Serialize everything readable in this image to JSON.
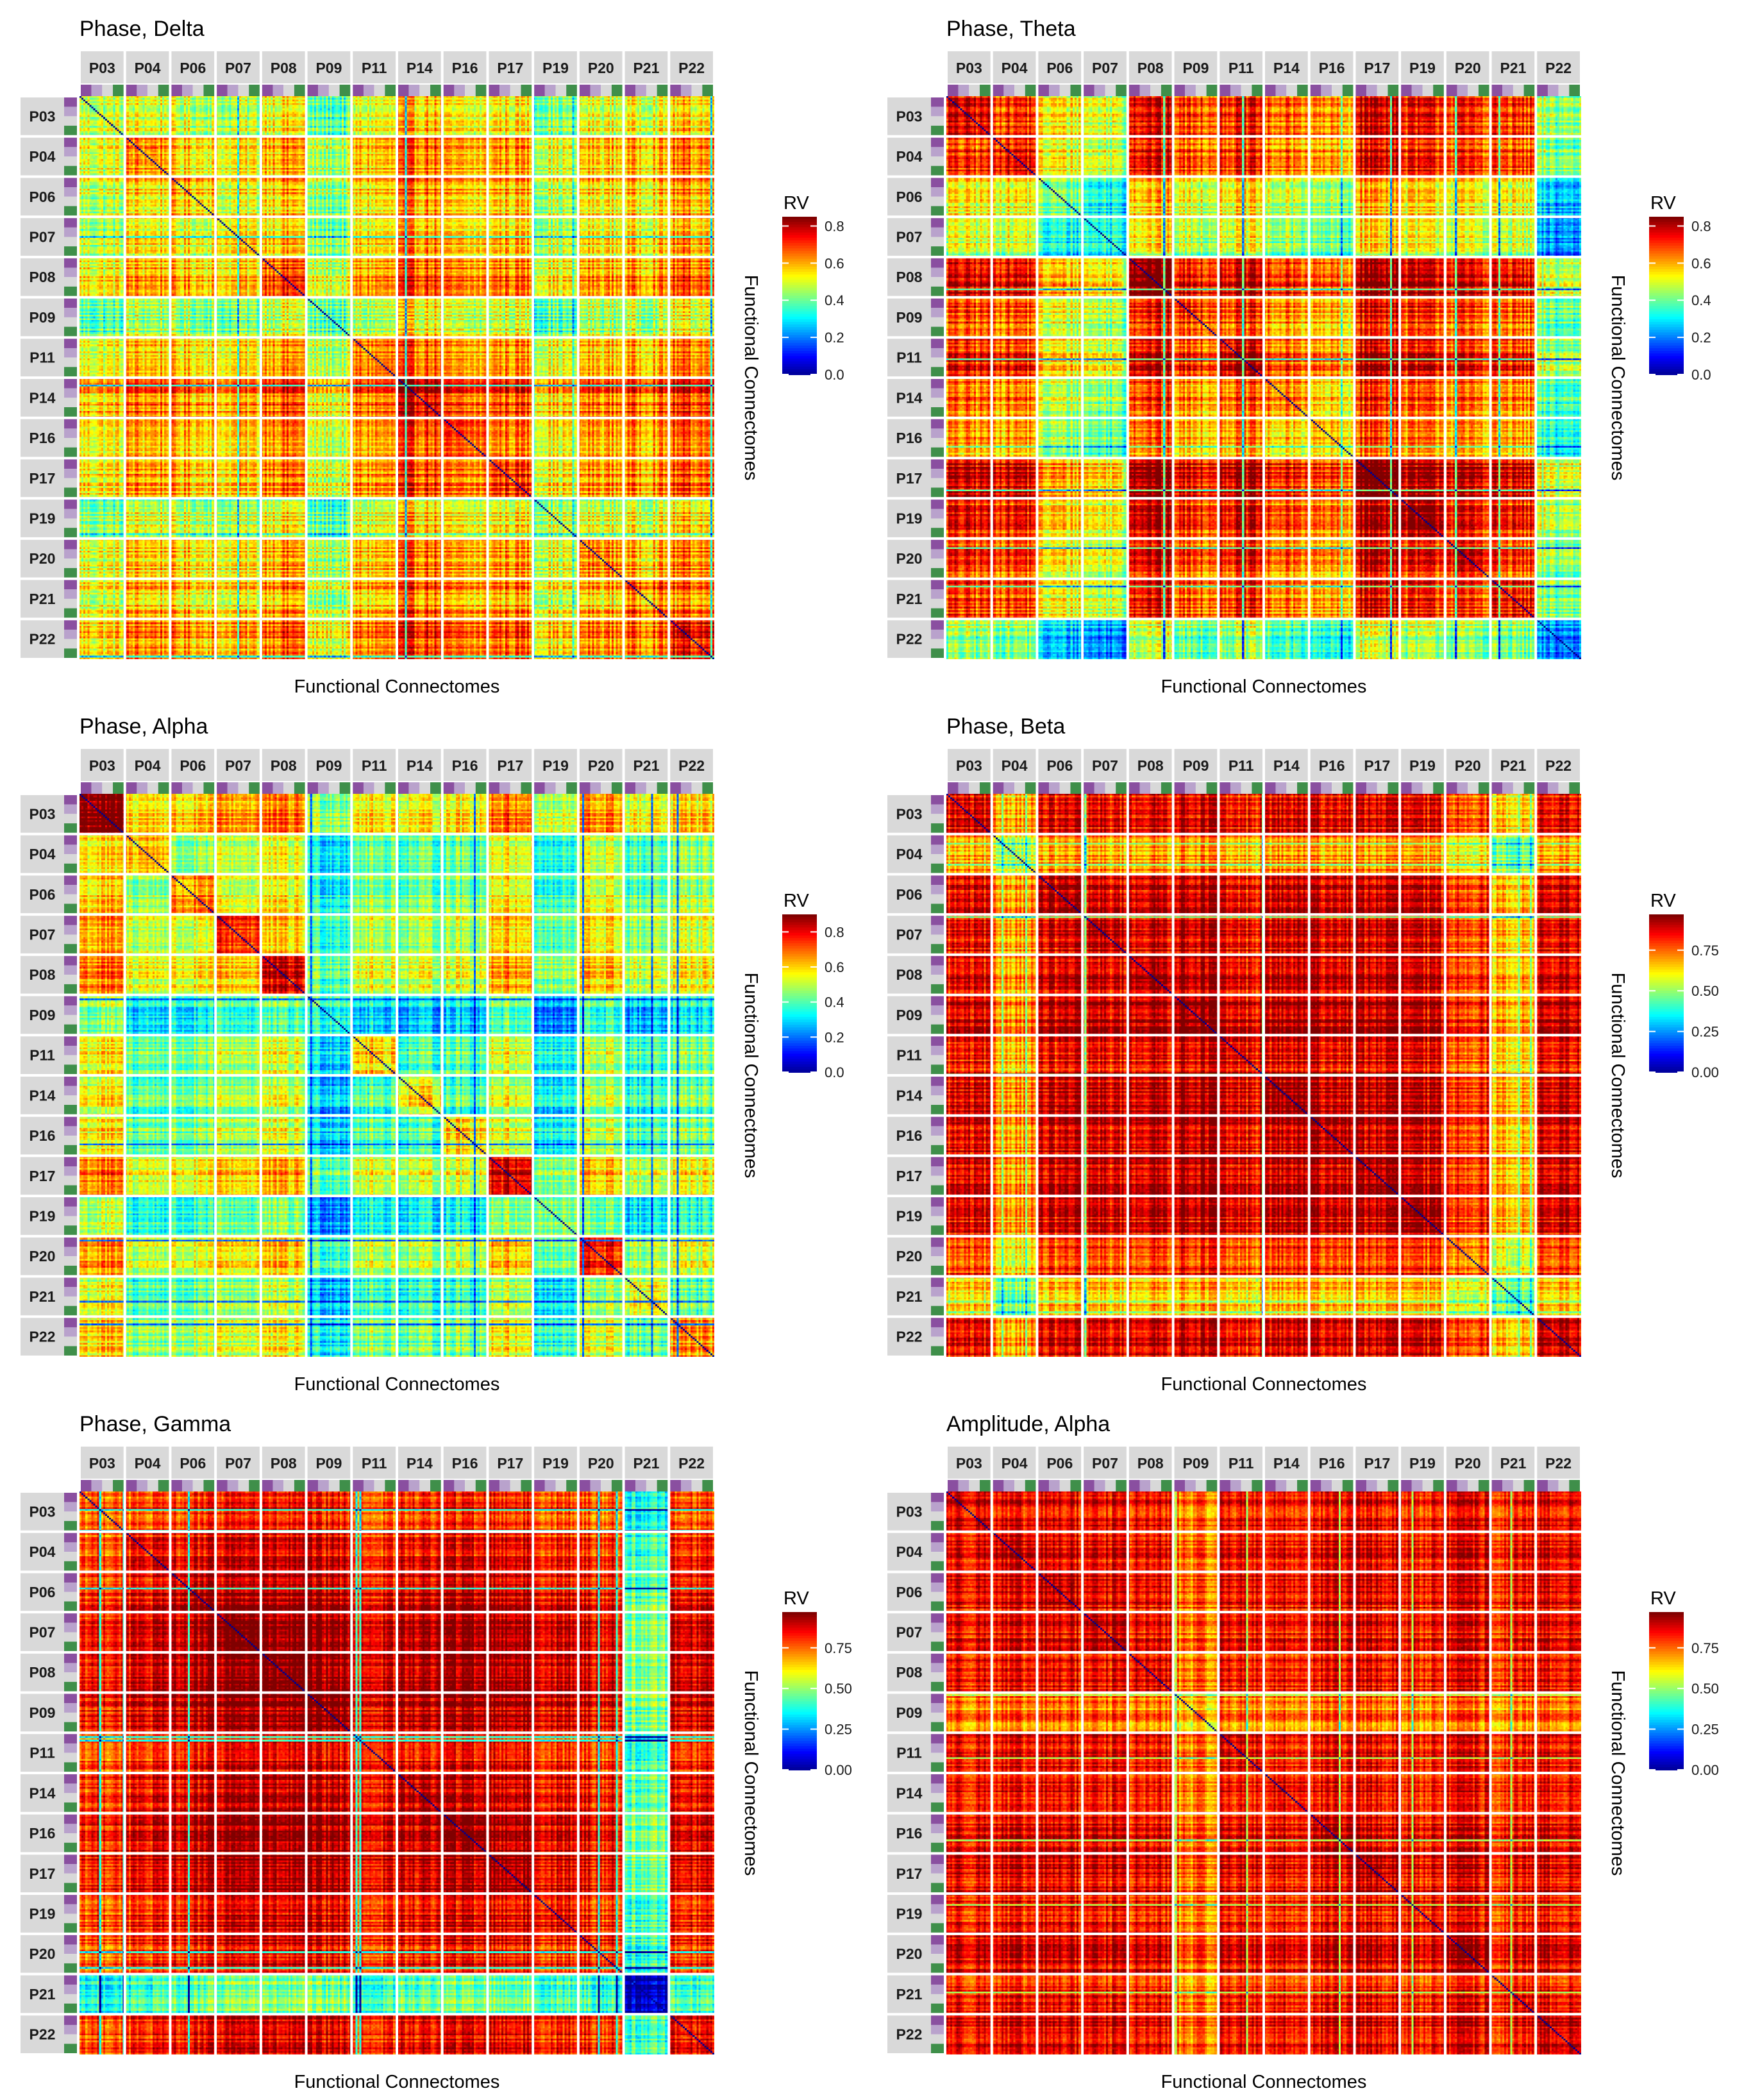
{
  "chart_data": [
    {
      "type": "heatmap",
      "title": "Phase, Delta",
      "xlabel": "Functional Connectomes",
      "ylabel": "Functional Connectomes",
      "participants": [
        "P03",
        "P04",
        "P06",
        "P07",
        "P08",
        "P09",
        "P11",
        "P14",
        "P16",
        "P17",
        "P19",
        "P20",
        "P21",
        "P22"
      ],
      "legend_title": "RV",
      "colorbar_ticks": [
        "0.0",
        "0.2",
        "0.4",
        "0.6",
        "0.8"
      ],
      "colorbar_tick_values": [
        0.0,
        0.2,
        0.4,
        0.6,
        0.8
      ],
      "value_range": [
        0.0,
        0.85
      ],
      "diagonal_value": 0.0,
      "participant_level": [
        0.55,
        0.62,
        0.6,
        0.58,
        0.66,
        0.5,
        0.62,
        0.7,
        0.63,
        0.66,
        0.55,
        0.62,
        0.63,
        0.68
      ],
      "background_level": 0.66,
      "within_block_boost": 0.05,
      "low_lines": [
        80,
        165,
        230,
        250,
        320,
        330
      ],
      "low_line_value": 0.38,
      "grid": true,
      "legend_position": "right"
    },
    {
      "type": "heatmap",
      "title": "Phase, Theta",
      "xlabel": "Functional Connectomes",
      "ylabel": "Functional Connectomes",
      "participants": [
        "P03",
        "P04",
        "P06",
        "P07",
        "P08",
        "P09",
        "P11",
        "P14",
        "P16",
        "P17",
        "P19",
        "P20",
        "P21",
        "P22"
      ],
      "legend_title": "RV",
      "colorbar_ticks": [
        "0.0",
        "0.2",
        "0.4",
        "0.6",
        "0.8"
      ],
      "colorbar_tick_values": [
        0.0,
        0.2,
        0.4,
        0.6,
        0.8
      ],
      "value_range": [
        0.0,
        0.85
      ],
      "diagonal_value": 0.0,
      "participant_level": [
        0.72,
        0.72,
        0.55,
        0.52,
        0.78,
        0.7,
        0.74,
        0.66,
        0.62,
        0.8,
        0.74,
        0.72,
        0.7,
        0.45
      ],
      "background_level": 0.74,
      "within_block_boost": 0.05,
      "low_lines": [
        90,
        110,
        150,
        200,
        225,
        258,
        280,
        302,
        310
      ],
      "low_line_value": 0.42,
      "grid": true,
      "legend_position": "right"
    },
    {
      "type": "heatmap",
      "title": "Phase, Alpha",
      "xlabel": "Functional Connectomes",
      "ylabel": "Functional Connectomes",
      "participants": [
        "P03",
        "P04",
        "P06",
        "P07",
        "P08",
        "P09",
        "P11",
        "P14",
        "P16",
        "P17",
        "P19",
        "P20",
        "P21",
        "P22"
      ],
      "legend_title": "RV",
      "colorbar_ticks": [
        "0.0",
        "0.2",
        "0.4",
        "0.6",
        "0.8"
      ],
      "colorbar_tick_values": [
        0.0,
        0.2,
        0.4,
        0.6,
        0.8
      ],
      "value_range": [
        0.0,
        0.9
      ],
      "diagonal_value": 0.0,
      "participant_level": [
        0.55,
        0.42,
        0.42,
        0.48,
        0.5,
        0.3,
        0.4,
        0.38,
        0.4,
        0.52,
        0.32,
        0.48,
        0.36,
        0.42
      ],
      "background_level": 0.38,
      "within_block_boost": 0.18,
      "low_lines": [
        117,
        200,
        255,
        290,
        303
      ],
      "low_line_value": 0.2,
      "grid": true,
      "legend_position": "right"
    },
    {
      "type": "heatmap",
      "title": "Phase, Beta",
      "xlabel": "Functional Connectomes",
      "ylabel": "Functional Connectomes",
      "participants": [
        "P03",
        "P04",
        "P06",
        "P07",
        "P08",
        "P09",
        "P11",
        "P14",
        "P16",
        "P17",
        "P19",
        "P20",
        "P21",
        "P22"
      ],
      "legend_title": "RV",
      "colorbar_ticks": [
        "0.00",
        "0.25",
        "0.50",
        "0.75"
      ],
      "colorbar_tick_values": [
        0.0,
        0.25,
        0.5,
        0.75
      ],
      "value_range": [
        0.0,
        0.97
      ],
      "diagonal_value": 0.0,
      "participant_level": [
        0.84,
        0.7,
        0.86,
        0.86,
        0.88,
        0.9,
        0.84,
        0.88,
        0.88,
        0.88,
        0.86,
        0.8,
        0.66,
        0.86
      ],
      "background_level": 0.86,
      "within_block_boost": 0.03,
      "low_lines": [
        28,
        40,
        70,
        160,
        290,
        296
      ],
      "low_line_value": 0.5,
      "grid": true,
      "legend_position": "right"
    },
    {
      "type": "heatmap",
      "title": "Phase, Gamma",
      "xlabel": "Functional Connectomes",
      "ylabel": "Functional Connectomes",
      "participants": [
        "P03",
        "P04",
        "P06",
        "P07",
        "P08",
        "P09",
        "P11",
        "P14",
        "P16",
        "P17",
        "P19",
        "P20",
        "P21",
        "P22"
      ],
      "legend_title": "RV",
      "colorbar_ticks": [
        "0.00",
        "0.25",
        "0.50",
        "0.75"
      ],
      "colorbar_tick_values": [
        0.0,
        0.25,
        0.5,
        0.75
      ],
      "value_range": [
        0.0,
        0.97
      ],
      "diagonal_value": 0.0,
      "participant_level": [
        0.82,
        0.84,
        0.88,
        0.92,
        0.9,
        0.9,
        0.84,
        0.88,
        0.9,
        0.9,
        0.86,
        0.84,
        0.45,
        0.86
      ],
      "background_level": 0.88,
      "within_block_boost": 0.03,
      "low_lines": [
        10,
        22,
        55,
        140,
        142,
        263,
        272
      ],
      "low_line_value": 0.42,
      "grid": true,
      "legend_position": "right"
    },
    {
      "type": "heatmap",
      "title": "Amplitude, Alpha",
      "xlabel": "Functional Connectomes",
      "ylabel": "Functional Connectomes",
      "participants": [
        "P03",
        "P04",
        "P06",
        "P07",
        "P08",
        "P09",
        "P11",
        "P14",
        "P16",
        "P17",
        "P19",
        "P20",
        "P21",
        "P22"
      ],
      "legend_title": "RV",
      "colorbar_ticks": [
        "0.00",
        "0.25",
        "0.50",
        "0.75"
      ],
      "colorbar_tick_values": [
        0.0,
        0.25,
        0.5,
        0.75
      ],
      "value_range": [
        0.0,
        0.97
      ],
      "diagonal_value": 0.0,
      "participant_level": [
        0.86,
        0.84,
        0.86,
        0.86,
        0.84,
        0.74,
        0.86,
        0.84,
        0.86,
        0.86,
        0.84,
        0.86,
        0.82,
        0.86
      ],
      "background_level": 0.85,
      "within_block_boost": 0.03,
      "low_lines": [
        116,
        152,
        199,
        236,
        286
      ],
      "low_line_value": 0.55,
      "grid": true,
      "legend_position": "right"
    }
  ]
}
